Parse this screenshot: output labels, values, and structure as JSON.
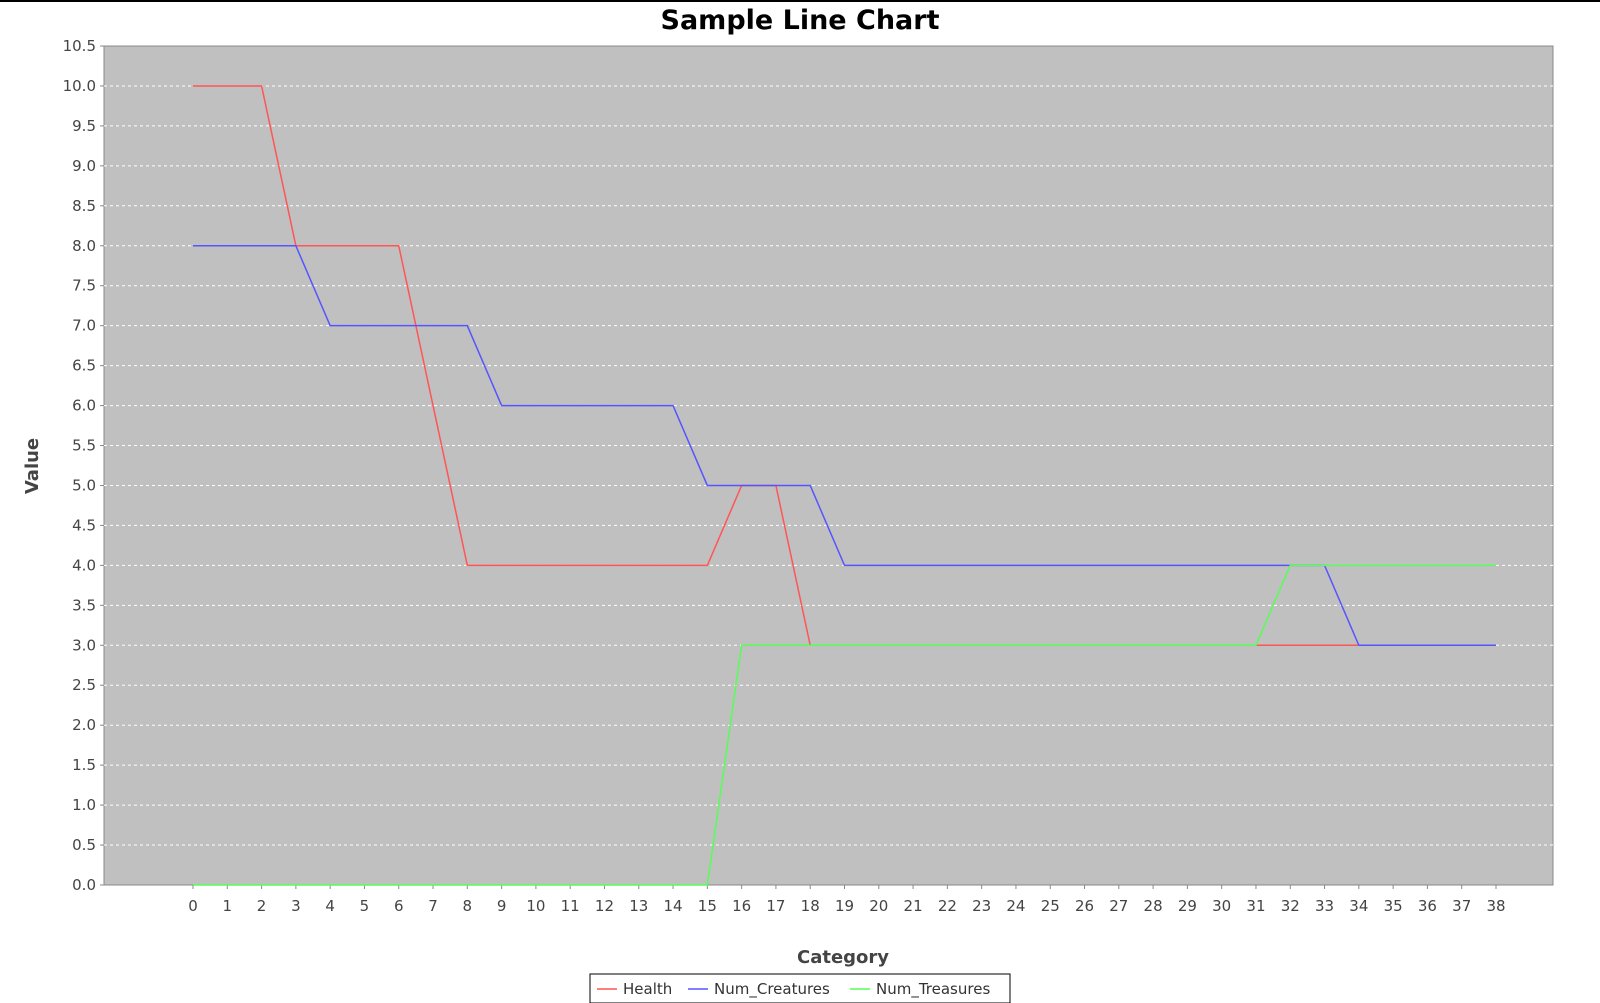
{
  "chart_data": {
    "type": "line",
    "title": "Sample Line Chart",
    "xlabel": "Category",
    "ylabel": "Value",
    "categories": [
      "0",
      "1",
      "2",
      "3",
      "4",
      "5",
      "6",
      "7",
      "8",
      "9",
      "10",
      "11",
      "12",
      "13",
      "14",
      "15",
      "16",
      "17",
      "18",
      "19",
      "20",
      "21",
      "22",
      "23",
      "24",
      "25",
      "26",
      "27",
      "28",
      "29",
      "30",
      "31",
      "32",
      "33",
      "34",
      "35",
      "36",
      "37",
      "38"
    ],
    "ylim": [
      0,
      10.5
    ],
    "yticks": [
      "0.0",
      "0.5",
      "1.0",
      "1.5",
      "2.0",
      "2.5",
      "3.0",
      "3.5",
      "4.0",
      "4.5",
      "5.0",
      "5.5",
      "6.0",
      "6.5",
      "7.0",
      "7.5",
      "8.0",
      "8.5",
      "9.0",
      "9.5",
      "10.0",
      "10.5"
    ],
    "grid": true,
    "legend_position": "bottom",
    "plot_background": "#c0c0c0",
    "series": [
      {
        "name": "Health",
        "color": "#ff5555",
        "values": [
          10,
          10,
          10,
          8,
          8,
          8,
          8,
          6,
          4,
          4,
          4,
          4,
          4,
          4,
          4,
          4,
          5,
          5,
          3,
          3,
          3,
          3,
          3,
          3,
          3,
          3,
          3,
          3,
          3,
          3,
          3,
          3,
          3,
          3,
          3,
          3,
          3,
          3,
          3
        ]
      },
      {
        "name": "Num_Creatures",
        "color": "#5555ff",
        "values": [
          8,
          8,
          8,
          8,
          7,
          7,
          7,
          7,
          7,
          6,
          6,
          6,
          6,
          6,
          6,
          5,
          5,
          5,
          5,
          4,
          4,
          4,
          4,
          4,
          4,
          4,
          4,
          4,
          4,
          4,
          4,
          4,
          4,
          4,
          3,
          3,
          3,
          3,
          3
        ]
      },
      {
        "name": "Num_Treasures",
        "color": "#55ff55",
        "values": [
          0,
          0,
          0,
          0,
          0,
          0,
          0,
          0,
          0,
          0,
          0,
          0,
          0,
          0,
          0,
          0,
          3,
          3,
          3,
          3,
          3,
          3,
          3,
          3,
          3,
          3,
          3,
          3,
          3,
          3,
          3,
          3,
          4,
          4,
          4,
          4,
          4,
          4,
          4
        ]
      }
    ]
  }
}
